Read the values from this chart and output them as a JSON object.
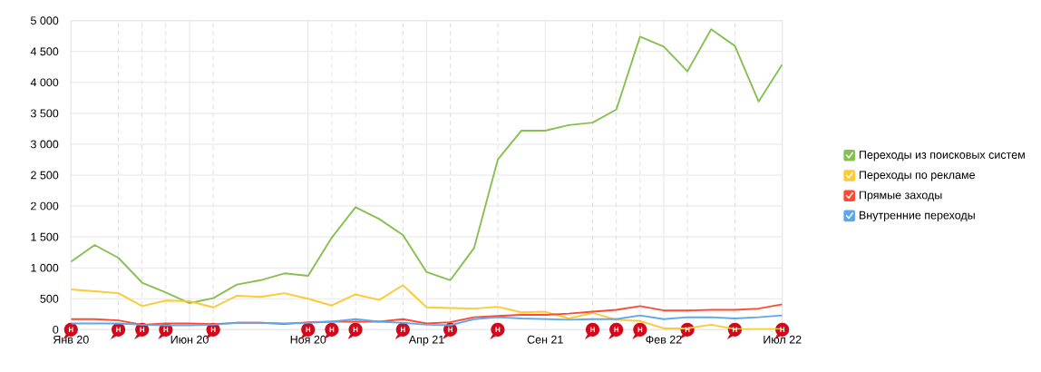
{
  "chart_data": {
    "type": "line",
    "x": [
      "2020-01",
      "2020-02",
      "2020-03",
      "2020-04",
      "2020-05",
      "2020-06",
      "2020-07",
      "2020-08",
      "2020-09",
      "2020-10",
      "2020-11",
      "2020-12",
      "2021-01",
      "2021-02",
      "2021-03",
      "2021-04",
      "2021-05",
      "2021-06",
      "2021-07",
      "2021-08",
      "2021-09",
      "2021-10",
      "2021-11",
      "2021-12",
      "2022-01",
      "2022-02",
      "2022-03",
      "2022-04",
      "2022-05",
      "2022-06",
      "2022-07"
    ],
    "xlim": [
      "2020-01",
      "2022-07"
    ],
    "xticks": [
      {
        "value": "2020-01",
        "label": "Янв 20"
      },
      {
        "value": "2020-06",
        "label": "Июн 20"
      },
      {
        "value": "2020-11",
        "label": "Ноя 20"
      },
      {
        "value": "2021-04",
        "label": "Апр 21"
      },
      {
        "value": "2021-09",
        "label": "Сен 21"
      },
      {
        "value": "2022-02",
        "label": "Фев 22"
      },
      {
        "value": "2022-07",
        "label": "Июл 22"
      }
    ],
    "ylim": [
      0,
      5000
    ],
    "yticks": [
      0,
      500,
      {
        "value": 1000,
        "label": "1 000"
      },
      {
        "value": 1500,
        "label": "1 500"
      },
      {
        "value": 2000,
        "label": "2 000"
      },
      {
        "value": 2500,
        "label": "2 500"
      },
      {
        "value": 3000,
        "label": "3 000"
      },
      {
        "value": 3500,
        "label": "3 500"
      },
      {
        "value": 4000,
        "label": "4 000"
      },
      {
        "value": 4500,
        "label": "4 500"
      },
      {
        "value": 5000,
        "label": "5 000"
      }
    ],
    "grid": true,
    "legend": "right",
    "marker": "none",
    "series": [
      {
        "name": "Переходы из поисковых систем",
        "color": "#86c050",
        "values": [
          1100,
          1370,
          1160,
          760,
          600,
          430,
          510,
          730,
          800,
          910,
          870,
          1490,
          1980,
          1790,
          1530,
          930,
          800,
          1320,
          2750,
          3220,
          3220,
          3310,
          3350,
          3560,
          4740,
          4580,
          4180,
          4860,
          4590,
          3690,
          4290
        ]
      },
      {
        "name": "Переходы по рекламе",
        "color": "#fdc935",
        "values": [
          650,
          620,
          590,
          380,
          470,
          460,
          360,
          550,
          530,
          590,
          500,
          390,
          570,
          480,
          720,
          360,
          350,
          340,
          370,
          280,
          290,
          180,
          270,
          160,
          140,
          20,
          20,
          80,
          10,
          10,
          10
        ]
      },
      {
        "name": "Прямые заходы",
        "color": "#fe4a33",
        "values": [
          170,
          170,
          150,
          80,
          100,
          100,
          90,
          110,
          110,
          90,
          120,
          130,
          130,
          130,
          170,
          100,
          120,
          200,
          220,
          240,
          240,
          260,
          290,
          320,
          380,
          310,
          310,
          320,
          320,
          340,
          410
        ]
      },
      {
        "name": "Внутренние переходы",
        "color": "#5ea8ea",
        "values": [
          100,
          100,
          100,
          80,
          70,
          70,
          80,
          110,
          110,
          100,
          110,
          130,
          170,
          130,
          110,
          80,
          70,
          170,
          200,
          180,
          170,
          160,
          170,
          170,
          230,
          170,
          200,
          200,
          180,
          200,
          230
        ]
      }
    ],
    "ref_lines": [
      {
        "axis": "x",
        "value": "2020-03",
        "color": "#dddddd",
        "line_style": "dashed"
      },
      {
        "axis": "x",
        "value": "2020-04",
        "color": "#dddddd",
        "line_style": "dashed"
      },
      {
        "axis": "x",
        "value": "2020-05",
        "color": "#dddddd",
        "line_style": "dashed"
      },
      {
        "axis": "x",
        "value": "2020-07",
        "color": "#dddddd",
        "line_style": "dashed"
      },
      {
        "axis": "x",
        "value": "2020-12",
        "color": "#dddddd",
        "line_style": "dashed"
      },
      {
        "axis": "x",
        "value": "2021-01",
        "color": "#dddddd",
        "line_style": "dashed"
      },
      {
        "axis": "x",
        "value": "2021-03",
        "color": "#dddddd",
        "line_style": "dashed"
      },
      {
        "axis": "x",
        "value": "2021-05",
        "color": "#dddddd",
        "line_style": "dashed"
      },
      {
        "axis": "x",
        "value": "2021-07",
        "color": "#dddddd",
        "line_style": "dashed"
      },
      {
        "axis": "x",
        "value": "2021-11",
        "color": "#dddddd",
        "line_style": "dashed"
      },
      {
        "axis": "x",
        "value": "2021-12",
        "color": "#dddddd",
        "line_style": "dashed"
      },
      {
        "axis": "x",
        "value": "2022-01",
        "color": "#dddddd",
        "line_style": "dashed"
      },
      {
        "axis": "x",
        "value": "2022-03",
        "color": "#dddddd",
        "line_style": "dashed"
      },
      {
        "axis": "x",
        "value": "2022-05",
        "color": "#dddddd",
        "line_style": "dashed"
      }
    ],
    "annotations": [
      {
        "text": "Н",
        "x": "2020-01",
        "y": 0
      },
      {
        "text": "Н",
        "x": "2020-03",
        "y": 0
      },
      {
        "text": "Н",
        "x": "2020-04",
        "y": 0
      },
      {
        "text": "Н",
        "x": "2020-05",
        "y": 0
      },
      {
        "text": "Н",
        "x": "2020-07",
        "y": 0
      },
      {
        "text": "Н",
        "x": "2020-11",
        "y": 0
      },
      {
        "text": "Н",
        "x": "2020-12",
        "y": 0
      },
      {
        "text": "Н",
        "x": "2021-01",
        "y": 0
      },
      {
        "text": "Н",
        "x": "2021-03",
        "y": 0
      },
      {
        "text": "Н",
        "x": "2021-05",
        "y": 0
      },
      {
        "text": "Н",
        "x": "2021-07",
        "y": 0
      },
      {
        "text": "Н",
        "x": "2021-11",
        "y": 0
      },
      {
        "text": "Н",
        "x": "2021-12",
        "y": 0
      },
      {
        "text": "Н",
        "x": "2022-01",
        "y": 0
      },
      {
        "text": "Н",
        "x": "2022-03",
        "y": 0
      },
      {
        "text": "Н",
        "x": "2022-05",
        "y": 0
      },
      {
        "text": "Н",
        "x": "2022-07",
        "y": 0
      }
    ]
  }
}
